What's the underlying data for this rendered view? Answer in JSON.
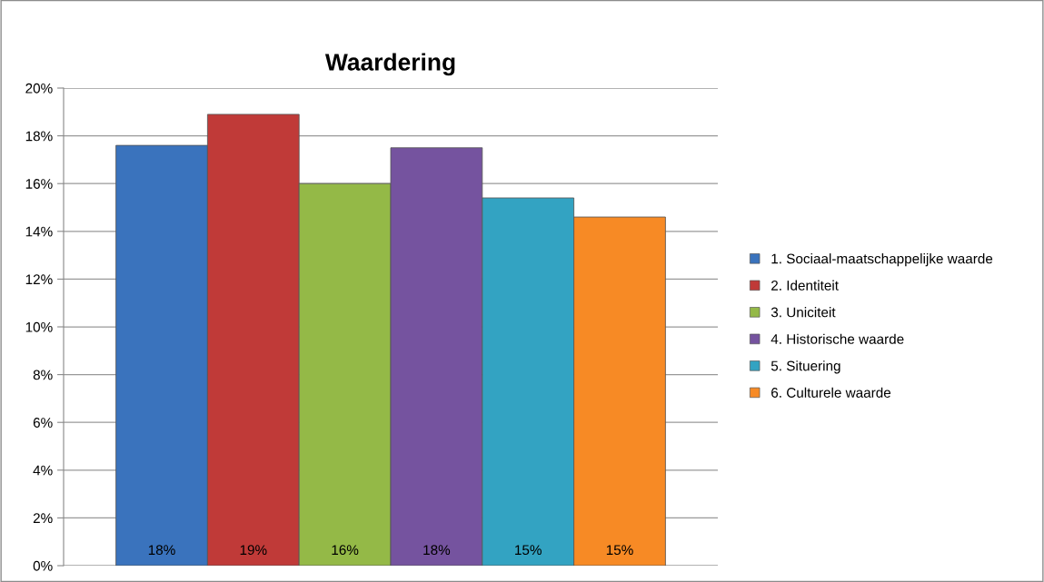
{
  "chart_data": {
    "type": "bar",
    "title": "Waardering",
    "categories": [
      null
    ],
    "series": [
      {
        "name": "1. Sociaal-maatschappelijke waarde",
        "color": "#3a73bd",
        "values": [
          17.6
        ],
        "value_labels": [
          "18%"
        ]
      },
      {
        "name": "2. Identiteit",
        "color": "#c03a38",
        "values": [
          18.9
        ],
        "value_labels": [
          "19%"
        ]
      },
      {
        "name": "3. Uniciteit",
        "color": "#94b947",
        "values": [
          16.0
        ],
        "value_labels": [
          "16%"
        ]
      },
      {
        "name": "4. Historische waarde",
        "color": "#75539f",
        "values": [
          17.5
        ],
        "value_labels": [
          "18%"
        ]
      },
      {
        "name": "5. Situering",
        "color": "#33a3c2",
        "values": [
          15.4
        ],
        "value_labels": [
          "15%"
        ]
      },
      {
        "name": "6. Culturele waarde",
        "color": "#f78a25",
        "values": [
          14.6
        ],
        "value_labels": [
          "15%"
        ]
      }
    ],
    "ylim": [
      0,
      20
    ],
    "yticks": [
      {
        "value": 0,
        "label": "0%"
      },
      {
        "value": 2,
        "label": "2%"
      },
      {
        "value": 4,
        "label": "4%"
      },
      {
        "value": 6,
        "label": "6%"
      },
      {
        "value": 8,
        "label": "8%"
      },
      {
        "value": 10,
        "label": "10%"
      },
      {
        "value": 12,
        "label": "12%"
      },
      {
        "value": 14,
        "label": "14%"
      },
      {
        "value": 16,
        "label": "16%"
      },
      {
        "value": 18,
        "label": "18%"
      },
      {
        "value": 20,
        "label": "20%"
      }
    ],
    "grid": "y",
    "legend": "right"
  }
}
